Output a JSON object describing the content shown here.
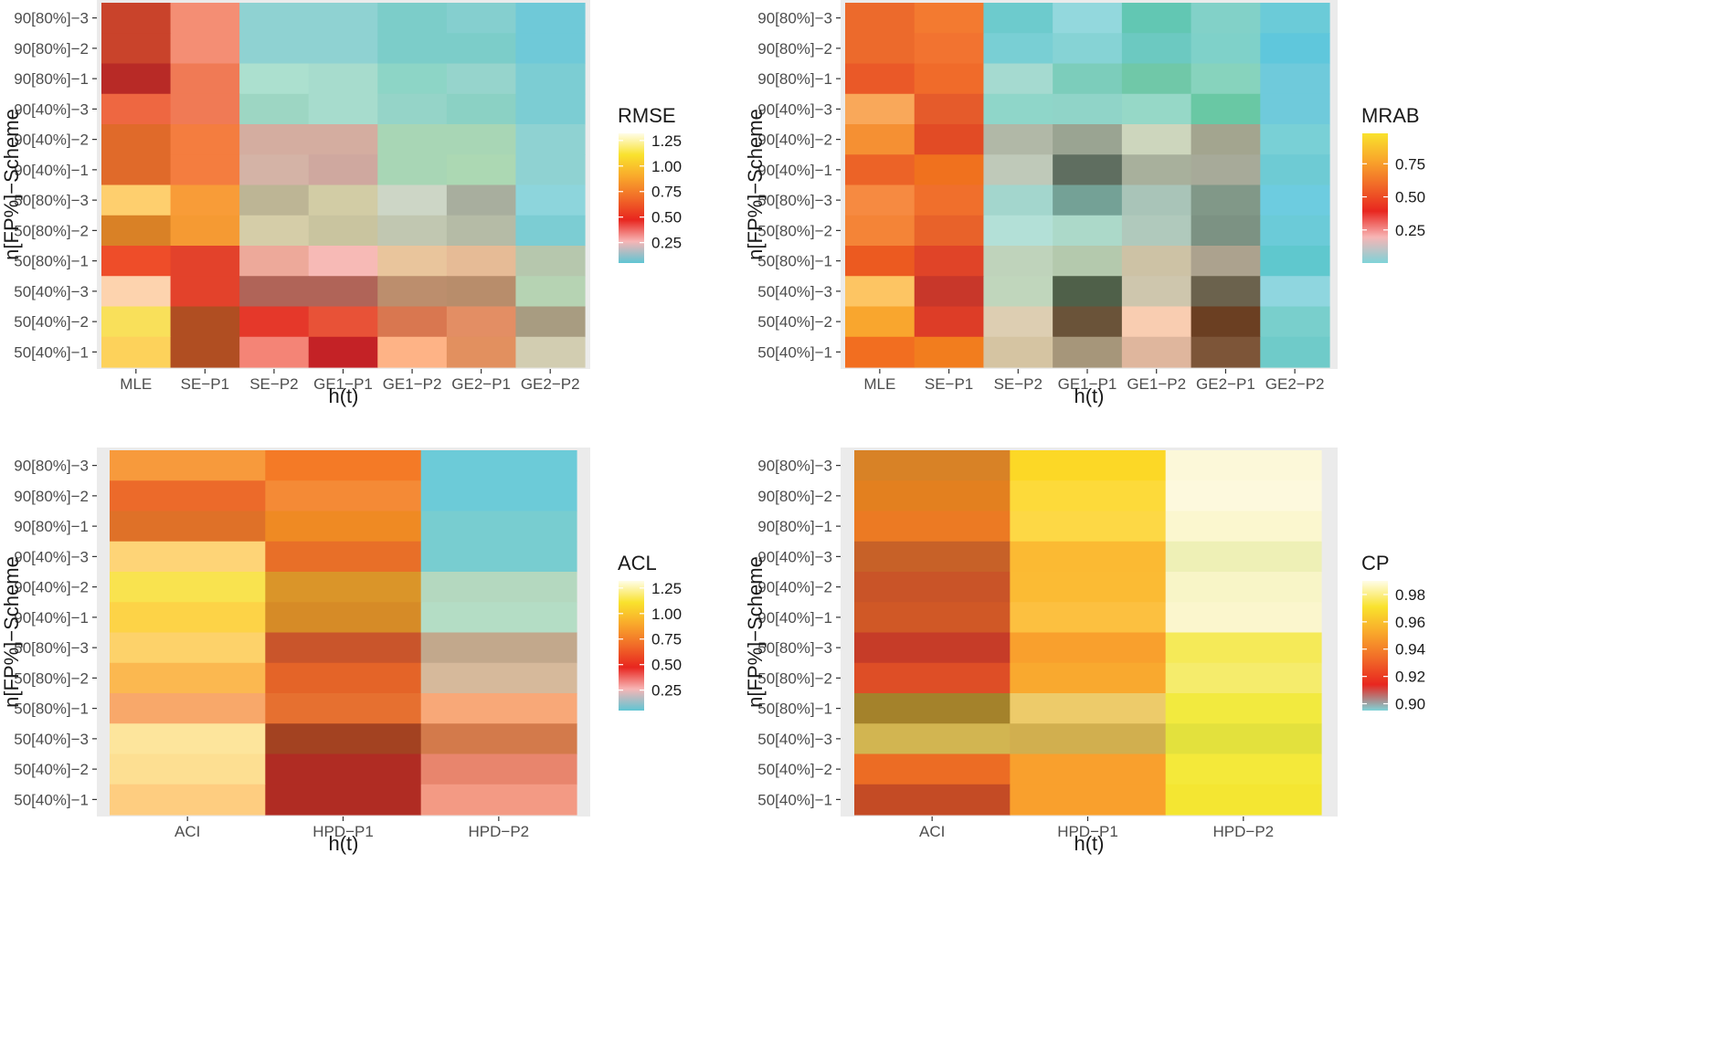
{
  "figure": {
    "description_free": true
  },
  "chart_data": [
    {
      "id": "rmse",
      "type": "heatmap",
      "xlabel": "h(t)",
      "ylabel": "n[FP%]−Scheme",
      "x_categories": [
        "MLE",
        "SE−P1",
        "SE−P2",
        "GE1−P1",
        "GE1−P2",
        "GE2−P1",
        "GE2−P2"
      ],
      "y_categories": [
        "90[80%]−3",
        "90[80%]−2",
        "90[80%]−1",
        "90[40%]−3",
        "90[40%]−2",
        "90[40%]−1",
        "50[80%]−3",
        "50[80%]−2",
        "50[80%]−1",
        "50[40%]−3",
        "50[40%]−2",
        "50[40%]−1"
      ],
      "legend": {
        "title": "RMSE",
        "ticks": [
          0.25,
          0.5,
          0.75,
          1.0,
          1.25
        ],
        "tick_labels": [
          "0.25",
          "0.50",
          "0.75",
          "1.00",
          "1.25"
        ],
        "range": [
          0.05,
          1.32
        ],
        "colors": [
          "#5fc5d3",
          "#f7b5b5",
          "#e8261f",
          "#f16a28",
          "#f9a82b",
          "#f9e22d",
          "#fffde8"
        ],
        "placement": "right"
      },
      "cell_colors": [
        [
          "#c9432b",
          "#f48e74",
          "#8fd2d2",
          "#8fd2d2",
          "#7ccdc9",
          "#85cfcf",
          "#6fc9d8"
        ],
        [
          "#c9432b",
          "#f48e74",
          "#8fd2d2",
          "#8fd2d2",
          "#7ccdc9",
          "#7ccdc9",
          "#6fc9d8"
        ],
        [
          "#b82a26",
          "#f07a55",
          "#ace0cf",
          "#a7dccd",
          "#8dd5c6",
          "#96d4cc",
          "#7ccdd3"
        ],
        [
          "#ee6741",
          "#f07a55",
          "#9dd6c3",
          "#a7dccd",
          "#95d4c8",
          "#8bd1c4",
          "#7ccdd3"
        ],
        [
          "#e06a2a",
          "#f47d3f",
          "#d4ada0",
          "#d4ada0",
          "#a8d6b5",
          "#a8d6b5",
          "#8fd2d2"
        ],
        [
          "#e06a2a",
          "#f47d3f",
          "#d4b3a6",
          "#cfa89f",
          "#a8d6b5",
          "#acd8b3",
          "#8fd2d2"
        ],
        [
          "#fecf6e",
          "#f89c38",
          "#bdb595",
          "#d2cca5",
          "#cdd6c6",
          "#a8ae9e",
          "#8dd5dc"
        ],
        [
          "#d98126",
          "#f59a33",
          "#d5cda8",
          "#c9c49f",
          "#c1c7b1",
          "#b5bba6",
          "#7ccdd3"
        ],
        [
          "#ee4d29",
          "#e3422b",
          "#eda99a",
          "#f7bab6",
          "#e9c59c",
          "#e6bb96",
          "#b6c7ad"
        ],
        [
          "#fdd3ae",
          "#e3422b",
          "#b06458",
          "#b06458",
          "#bc8e6d",
          "#b88d6b",
          "#b6d3b3"
        ],
        [
          "#f9e05a",
          "#b04e22",
          "#e5382a",
          "#e85237",
          "#d97750",
          "#e38e64",
          "#a89c81"
        ],
        [
          "#fdd25b",
          "#b04e22",
          "#f48476",
          "#c42226",
          "#feb386",
          "#e2905f",
          "#d2cdb1"
        ]
      ]
    },
    {
      "id": "mrab",
      "type": "heatmap",
      "xlabel": "h(t)",
      "ylabel": "n[FP%]−Scheme",
      "x_categories": [
        "MLE",
        "SE−P1",
        "SE−P2",
        "GE1−P1",
        "GE1−P2",
        "GE2−P1",
        "GE2−P2"
      ],
      "y_categories": [
        "90[80%]−3",
        "90[80%]−2",
        "90[80%]−1",
        "90[40%]−3",
        "90[40%]−2",
        "90[40%]−1",
        "50[80%]−3",
        "50[80%]−2",
        "50[80%]−1",
        "50[40%]−3",
        "50[40%]−2",
        "50[40%]−1"
      ],
      "legend": {
        "title": "MRAB",
        "ticks": [
          0.25,
          0.5,
          0.75
        ],
        "tick_labels": [
          "0.25",
          "0.50",
          "0.75"
        ],
        "range": [
          0.0,
          0.98
        ],
        "colors": [
          "#7fd3d8",
          "#f7b5b5",
          "#e8261f",
          "#f16a28",
          "#f9a82b",
          "#f9e22d"
        ],
        "placement": "right"
      },
      "cell_colors": [
        [
          "#ec6a2c",
          "#f37a30",
          "#6dcbcd",
          "#93d8dd",
          "#62c7b3",
          "#82d1c8",
          "#6bcbd8"
        ],
        [
          "#ec6a2c",
          "#f27330",
          "#79cfd4",
          "#86d3d5",
          "#6cc9c1",
          "#7fd1c9",
          "#5fc7dc"
        ],
        [
          "#ea5928",
          "#f06b2a",
          "#a5dad0",
          "#7ccdbb",
          "#70c8a8",
          "#87d3bd",
          "#6fcadb"
        ],
        [
          "#f9a85a",
          "#e55b2b",
          "#8fd6c9",
          "#90d4c8",
          "#96d8c7",
          "#69c8a4",
          "#6fcadb"
        ],
        [
          "#f59033",
          "#e24b25",
          "#b1b8a7",
          "#9aa492",
          "#cdd6bd",
          "#a3a58f",
          "#79d0d6"
        ],
        [
          "#ec6327",
          "#f0711e",
          "#bfc9b9",
          "#5f6e60",
          "#a8b09c",
          "#a7aa99",
          "#6ecbd4"
        ],
        [
          "#f68a41",
          "#f06f2c",
          "#a3d6cd",
          "#74a196",
          "#a9c4b8",
          "#819888",
          "#6dcce0"
        ],
        [
          "#f48437",
          "#e8622a",
          "#b3e0d7",
          "#acd9c9",
          "#b0c9bc",
          "#7c9283",
          "#6bcbd8"
        ],
        [
          "#ec5a20",
          "#e04428",
          "#bfd3bb",
          "#b4c9ad",
          "#cdc2a5",
          "#aca28e",
          "#5fc8ce"
        ],
        [
          "#fdc563",
          "#c8372a",
          "#c0d6bc",
          "#4f6049",
          "#cec6ad",
          "#6b624d",
          "#8fd6df"
        ],
        [
          "#f9a62e",
          "#dd3d27",
          "#ddceb2",
          "#6a5339",
          "#f9cdb1",
          "#6b3f22",
          "#79cfcc"
        ],
        [
          "#f26e20",
          "#f27d1e",
          "#d5c4a2",
          "#a6967a",
          "#dfb69d",
          "#7d5538",
          "#6fcbc9"
        ]
      ]
    },
    {
      "id": "acl",
      "type": "heatmap",
      "xlabel": "h(t)",
      "ylabel": "n[FP%]−Scheme",
      "x_categories": [
        "ACI",
        "HPD−P1",
        "HPD−P2"
      ],
      "y_categories": [
        "90[80%]−3",
        "90[80%]−2",
        "90[80%]−1",
        "90[40%]−3",
        "90[40%]−2",
        "90[40%]−1",
        "50[80%]−3",
        "50[80%]−2",
        "50[80%]−1",
        "50[40%]−3",
        "50[40%]−2",
        "50[40%]−1"
      ],
      "legend": {
        "title": "ACL",
        "ticks": [
          0.25,
          0.5,
          0.75,
          1.0,
          1.25
        ],
        "tick_labels": [
          "0.25",
          "0.50",
          "0.75",
          "1.00",
          "1.25"
        ],
        "range": [
          0.05,
          1.32
        ],
        "colors": [
          "#5fc5d3",
          "#f7b5b5",
          "#e8261f",
          "#f16a28",
          "#f9a82b",
          "#f9e22d",
          "#fffde8"
        ],
        "placement": "right"
      },
      "cell_colors": [
        [
          "#f79a3c",
          "#f47a26",
          "#6ccbd8"
        ],
        [
          "#ec6a2a",
          "#f48a36",
          "#6ccbd8"
        ],
        [
          "#df7128",
          "#ef8a23",
          "#78cdd0"
        ],
        [
          "#fed477",
          "#e86f28",
          "#78cdd0"
        ],
        [
          "#f9e34f",
          "#da9529",
          "#b4d8bf"
        ],
        [
          "#fdd347",
          "#d68b27",
          "#b4ddc5"
        ],
        [
          "#fdd26a",
          "#c9552b",
          "#c2a88c"
        ],
        [
          "#fbb850",
          "#e46428",
          "#d6b99b"
        ],
        [
          "#f8a86a",
          "#e67030",
          "#f8a878"
        ],
        [
          "#fde59c",
          "#a34221",
          "#d37a4b"
        ],
        [
          "#fddf92",
          "#b02c23",
          "#e8856d"
        ],
        [
          "#fecd80",
          "#b02c23",
          "#f39a84"
        ]
      ]
    },
    {
      "id": "cp",
      "type": "heatmap",
      "xlabel": "h(t)",
      "ylabel": "n[FP%]−Scheme",
      "x_categories": [
        "ACI",
        "HPD−P1",
        "HPD−P2"
      ],
      "y_categories": [
        "90[80%]−3",
        "90[80%]−2",
        "90[80%]−1",
        "90[40%]−3",
        "90[40%]−2",
        "90[40%]−1",
        "50[80%]−3",
        "50[80%]−2",
        "50[80%]−1",
        "50[40%]−3",
        "50[40%]−2",
        "50[40%]−1"
      ],
      "legend": {
        "title": "CP",
        "ticks": [
          0.9,
          0.92,
          0.94,
          0.96,
          0.98
        ],
        "tick_labels": [
          "0.90",
          "0.92",
          "0.94",
          "0.96",
          "0.98"
        ],
        "range": [
          0.895,
          0.99
        ],
        "colors": [
          "#7fd3d8",
          "#e8261f",
          "#f16a28",
          "#f9a82b",
          "#f9e22d",
          "#fffde8"
        ],
        "placement": "right"
      },
      "cell_colors": [
        [
          "#d88226",
          "#fcd826",
          "#fcf8d9"
        ],
        [
          "#e3801f",
          "#fdda3a",
          "#fdf9dd"
        ],
        [
          "#ec7a23",
          "#fdd845",
          "#fbf7cf"
        ],
        [
          "#c76128",
          "#fbba33",
          "#eef0b6"
        ],
        [
          "#c95428",
          "#fbbb34",
          "#f8f5c7"
        ],
        [
          "#d05826",
          "#fcc040",
          "#fbf6cd"
        ],
        [
          "#c63c28",
          "#f9a02d",
          "#f5ea58"
        ],
        [
          "#de4e26",
          "#f9a92f",
          "#f5ec6c"
        ],
        [
          "#a4822b",
          "#edcb6a",
          "#f2ea3f"
        ],
        [
          "#d2b551",
          "#d1af4f",
          "#e3e13d"
        ],
        [
          "#ec6c24",
          "#f9a02d",
          "#f4e93a"
        ],
        [
          "#c44b25",
          "#f9a02d",
          "#f4e632"
        ]
      ]
    }
  ]
}
